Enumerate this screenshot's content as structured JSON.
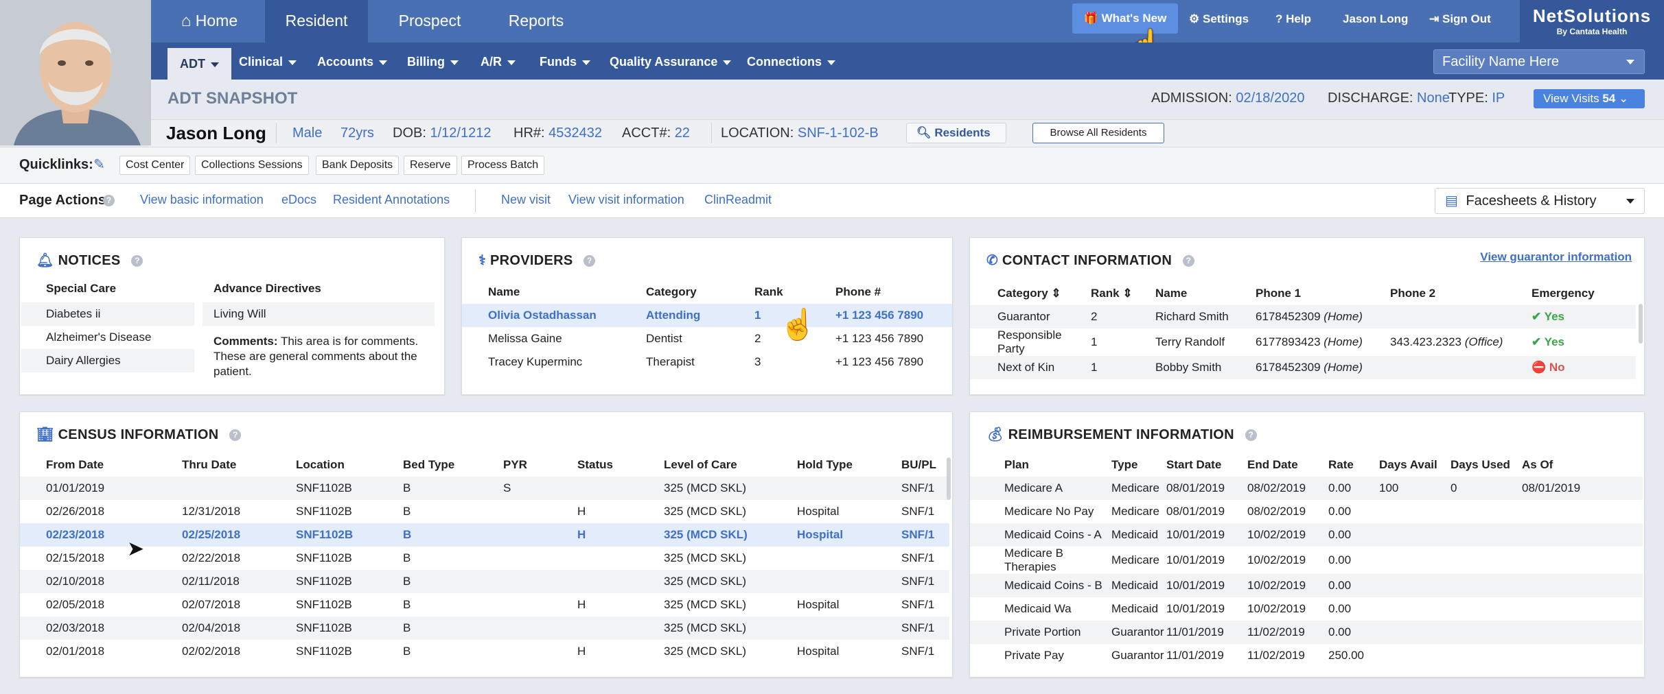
{
  "nav": {
    "home": "Home",
    "resident": "Resident",
    "prospect": "Prospect",
    "reports": "Reports",
    "whats_new": "What's New",
    "settings": "Settings",
    "help": "Help",
    "user": "Jason Long",
    "sign_out": "Sign Out"
  },
  "logo": {
    "name": "NetSolutions",
    "tagline": "By Cantata Health"
  },
  "subnav": [
    "ADT",
    "Clinical",
    "Accounts",
    "Billing",
    "A/R",
    "Funds",
    "Quality Assurance",
    "Connections"
  ],
  "facility": "Facility Name Here",
  "snapshot": {
    "title": "ADT SNAPSHOT",
    "admission_label": "ADMISSION:",
    "admission": "02/18/2020",
    "discharge_label": "DISCHARGE:",
    "discharge": "None",
    "type_label": "TYPE:",
    "type": "IP",
    "view_visits": "View Visits",
    "visits_count": "54"
  },
  "resident": {
    "name": "Jason Long",
    "gender": "Male",
    "age": "72yrs",
    "dob_label": "DOB:",
    "dob": "1/12/1212",
    "hr_label": "HR#:",
    "hr": "4532432",
    "acct_label": "ACCT#:",
    "acct": "22",
    "location_label": "LOCATION:",
    "location": "SNF-1-102-B",
    "residents_btn": "Residents",
    "browse_btn": "Browse All Residents"
  },
  "quicklinks": {
    "label": "Quicklinks:",
    "items": [
      "Cost Center",
      "Collections Sessions",
      "Bank Deposits",
      "Reserve",
      "Process Batch"
    ]
  },
  "page_actions": {
    "label": "Page Actions:",
    "links": [
      "View basic information",
      "eDocs",
      "Resident Annotations",
      "New visit",
      "View visit information",
      "ClinReadmit"
    ],
    "facesheets": "Facesheets & History"
  },
  "notices": {
    "title": "NOTICES",
    "special_care_header": "Special Care",
    "special_care": [
      "Diabetes ii",
      "Alzheimer's Disease",
      "Dairy Allergies"
    ],
    "advance_header": "Advance Directives",
    "advance": "Living Will",
    "comments_label": "Comments:",
    "comments": "This area is for comments. These are general comments about the patient."
  },
  "providers": {
    "title": "PROVIDERS",
    "headers": [
      "Name",
      "Category",
      "Rank",
      "Phone #"
    ],
    "rows": [
      [
        "Olivia Ostadhassan",
        "Attending",
        "1",
        "+1 123 456 7890"
      ],
      [
        "Melissa Gaine",
        "Dentist",
        "2",
        "+1 123 456 7890"
      ],
      [
        "Tracey Kuperminc",
        "Therapist",
        "3",
        "+1 123 456 7890"
      ]
    ]
  },
  "contact": {
    "title": "CONTACT INFORMATION",
    "guarantor_link": "View guarantor information",
    "headers": [
      "Category",
      "Rank",
      "Name",
      "Phone 1",
      "Phone 2",
      "Emergency"
    ],
    "rows": [
      {
        "category": "Guarantor",
        "rank": "2",
        "name": "Richard Smith",
        "phone1": "6178452309",
        "phone1_type": "(Home)",
        "phone2": "",
        "phone2_type": "",
        "emergency": "Yes"
      },
      {
        "category": "Responsible Party",
        "rank": "1",
        "name": "Terry Randolf",
        "phone1": "6177893423",
        "phone1_type": "(Home)",
        "phone2": "343.423.2323",
        "phone2_type": "(Office)",
        "emergency": "Yes"
      },
      {
        "category": "Next of Kin",
        "rank": "1",
        "name": "Bobby Smith",
        "phone1": "6178452309",
        "phone1_type": "(Home)",
        "phone2": "",
        "phone2_type": "",
        "emergency": "No"
      }
    ]
  },
  "census": {
    "title": "CENSUS INFORMATION",
    "headers": [
      "From Date",
      "Thru Date",
      "Location",
      "Bed Type",
      "PYR",
      "Status",
      "Level of Care",
      "Hold Type",
      "BU/PL"
    ],
    "rows": [
      [
        "01/01/2019",
        "",
        "SNF1102B",
        "B",
        "S",
        "",
        "325 (MCD SKL)",
        "",
        "SNF/1"
      ],
      [
        "02/26/2018",
        "12/31/2018",
        "SNF1102B",
        "B",
        "",
        "H",
        "325 (MCD SKL)",
        "Hospital",
        "SNF/1"
      ],
      [
        "02/23/2018",
        "02/25/2018",
        "SNF1102B",
        "B",
        "",
        "H",
        "325 (MCD SKL)",
        "Hospital",
        "SNF/1"
      ],
      [
        "02/15/2018",
        "02/22/2018",
        "SNF1102B",
        "B",
        "",
        "",
        "325 (MCD SKL)",
        "",
        "SNF/1"
      ],
      [
        "02/10/2018",
        "02/11/2018",
        "SNF1102B",
        "B",
        "",
        "",
        "325 (MCD SKL)",
        "",
        "SNF/1"
      ],
      [
        "02/05/2018",
        "02/07/2018",
        "SNF1102B",
        "B",
        "",
        "H",
        "325 (MCD SKL)",
        "Hospital",
        "SNF/1"
      ],
      [
        "02/03/2018",
        "02/04/2018",
        "SNF1102B",
        "B",
        "",
        "",
        "325 (MCD SKL)",
        "",
        "SNF/1"
      ],
      [
        "02/01/2018",
        "02/02/2018",
        "SNF1102B",
        "B",
        "",
        "H",
        "325 (MCD SKL)",
        "Hospital",
        "SNF/1"
      ]
    ]
  },
  "reimbursement": {
    "title": "REIMBURSEMENT INFORMATION",
    "headers": [
      "Plan",
      "Type",
      "Start Date",
      "End Date",
      "Rate",
      "Days Avail",
      "Days Used",
      "As Of"
    ],
    "rows": [
      [
        "Medicare A",
        "Medicare",
        "08/01/2019",
        "08/02/2019",
        "0.00",
        "100",
        "0",
        "08/01/2019"
      ],
      [
        "Medicare No Pay",
        "Medicare",
        "08/01/2019",
        "08/02/2019",
        "0.00",
        "",
        "",
        ""
      ],
      [
        "Medicaid Coins - A",
        "Medicaid",
        "10/01/2019",
        "10/02/2019",
        "0.00",
        "",
        "",
        ""
      ],
      [
        "Medicare B Therapies",
        "Medicare",
        "10/01/2019",
        "10/02/2019",
        "0.00",
        "",
        "",
        ""
      ],
      [
        "Medicaid Coins - B",
        "Medicaid",
        "10/01/2019",
        "10/02/2019",
        "0.00",
        "",
        "",
        ""
      ],
      [
        "Medicaid Wa",
        "Medicaid",
        "10/01/2019",
        "10/02/2019",
        "0.00",
        "",
        "",
        ""
      ],
      [
        "Private Portion",
        "Guarantor",
        "11/01/2019",
        "11/02/2019",
        "0.00",
        "",
        "",
        ""
      ],
      [
        "Private Pay",
        "Guarantor",
        "11/01/2019",
        "11/02/2019",
        "250.00",
        "",
        "",
        ""
      ]
    ]
  },
  "colors": {
    "primary": "#4a70b4",
    "dark": "#34589a",
    "link": "#3f6fc6",
    "yes": "#3aa64a",
    "no": "#d9534f"
  }
}
